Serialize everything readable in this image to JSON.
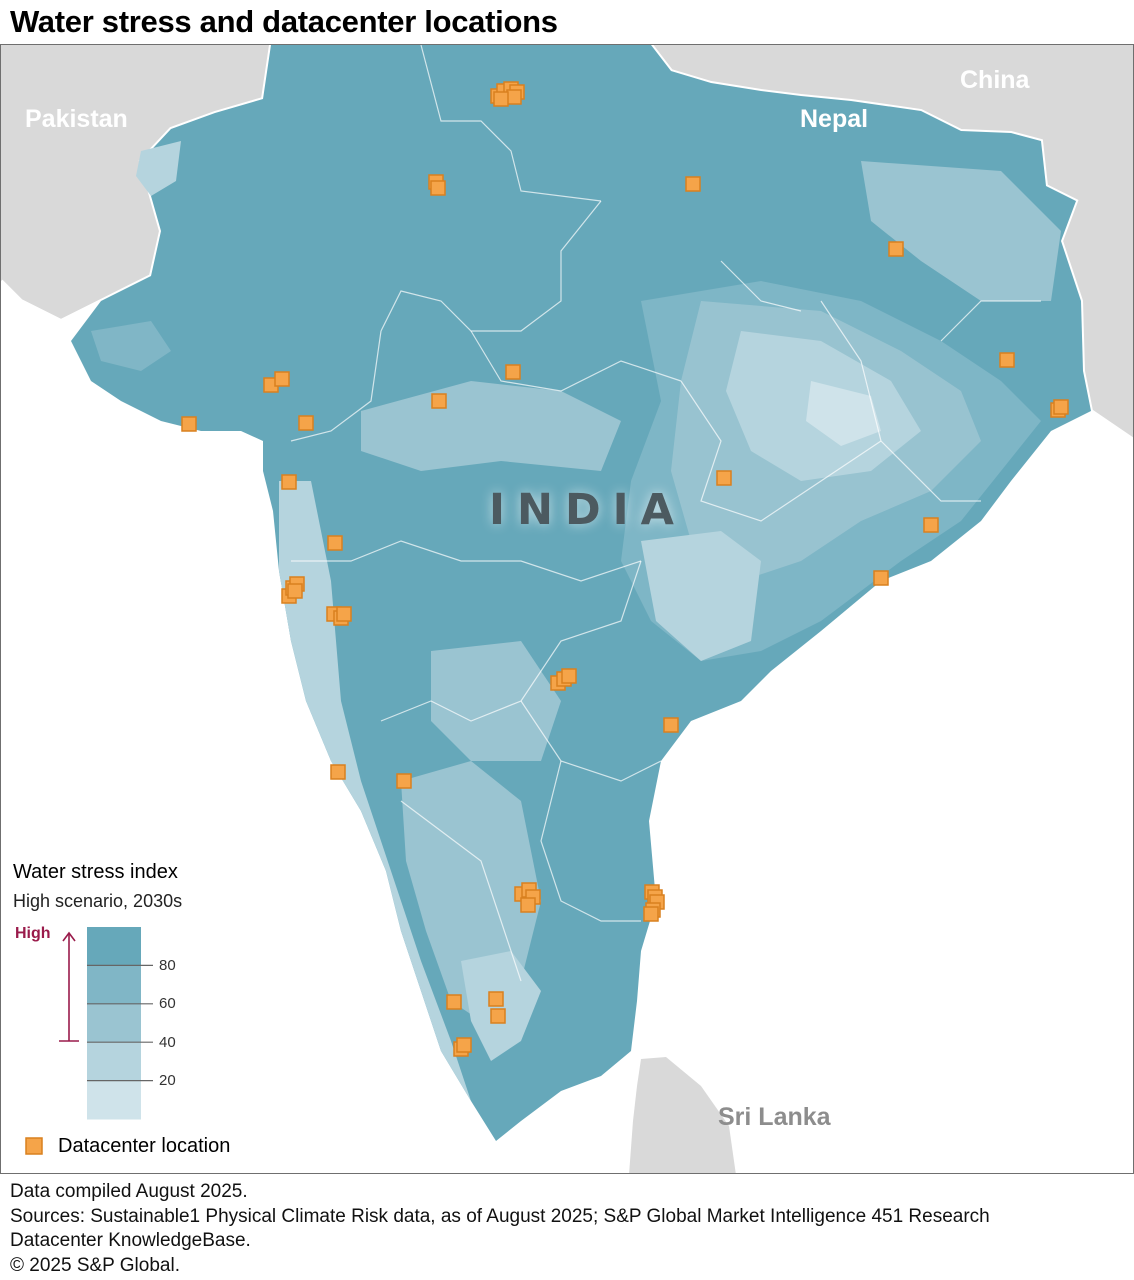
{
  "title": "Water stress and datacenter locations",
  "map_labels": {
    "pakistan": "Pakistan",
    "china": "China",
    "nepal": "Nepal",
    "sri_lanka": "Sri Lanka",
    "india": "INDIA"
  },
  "legend": {
    "title": "Water stress index",
    "subtitle": "High scenario, 2030s",
    "high_label": "High",
    "ticks": [
      "80",
      "60",
      "40",
      "20"
    ],
    "colors": [
      "#66a8ba",
      "#80b6c6",
      "#9ac4d1",
      "#b5d4de",
      "#cfe3ea"
    ],
    "datacenter_label": "Datacenter location",
    "datacenter_color": "#f5a449"
  },
  "footer": {
    "compiled": "Data compiled August 2025.",
    "sources_line1": "Sources: Sustainable1 Physical Climate Risk data, as of August 2025; S&P Global Market Intelligence 451 Research",
    "sources_line2": "Datacenter KnowledgeBase.",
    "copyright": "© 2025 S&P Global."
  }
}
